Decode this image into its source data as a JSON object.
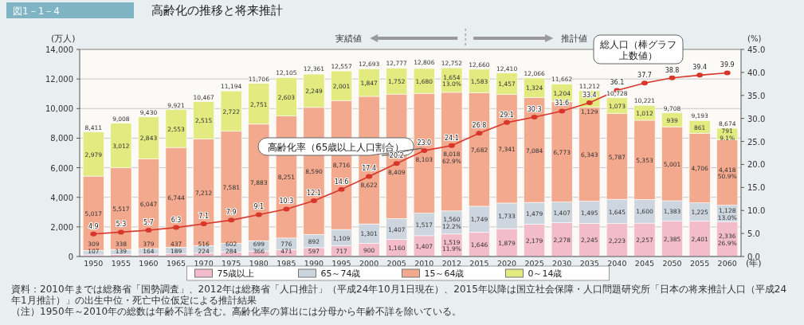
{
  "chart_data": {
    "type": "bar",
    "stacked": true,
    "title": "高齢化の推移と将来推計",
    "subtitle": "図1－1－4",
    "categories": [
      "1950",
      "1955",
      "1960",
      "1965",
      "1970",
      "1975",
      "1980",
      "1985",
      "1990",
      "1995",
      "2000",
      "2005",
      "2010",
      "2012",
      "2015",
      "2020",
      "2025",
      "2030",
      "2035",
      "2040",
      "2045",
      "2050",
      "2055",
      "2060"
    ],
    "xlabel": "(年)",
    "ylabel": "(万人)",
    "y2label": "(%)",
    "series": [
      {
        "name": "75歳以上",
        "color": "#f2bccb",
        "values": [
          107,
          139,
          164,
          189,
          224,
          284,
          366,
          471,
          597,
          717,
          900,
          1160,
          1407,
          1519,
          1646,
          1879,
          2179,
          2278,
          2245,
          2223,
          2257,
          2385,
          2401,
          2336
        ],
        "value_labels": [
          "107",
          "139",
          "164",
          "189",
          "224",
          "284",
          "366",
          "471",
          "597",
          "717",
          "900",
          "1,160",
          "1,407",
          "1,519\n11.9%",
          "1,646",
          "1,879",
          "2,179",
          "2,278",
          "2,245",
          "2,223",
          "2,257",
          "2,385",
          "2,401",
          "2,336\n26.9%"
        ]
      },
      {
        "name": "65～74歳",
        "color": "#cdd6de",
        "values": [
          309,
          338,
          379,
          437,
          516,
          602,
          699,
          776,
          892,
          1109,
          1301,
          1407,
          1517,
          1560,
          1749,
          1733,
          1479,
          1407,
          1495,
          1645,
          1600,
          1383,
          1225,
          1128
        ],
        "value_labels": [
          "309",
          "338",
          "379",
          "437",
          "516",
          "602",
          "699",
          "776",
          "892",
          "1,109",
          "1,301",
          "1,407",
          "1,517",
          "1,560\n12.2%",
          "1,749",
          "1,733",
          "1,479",
          "1,407",
          "1,495",
          "1,645",
          "1,600",
          "1,383",
          "1,225",
          "1,128\n13.0%"
        ]
      },
      {
        "name": "15～64歳",
        "color": "#f2a98e",
        "values": [
          5017,
          5517,
          6047,
          6744,
          7212,
          7581,
          7883,
          8251,
          8590,
          8716,
          8622,
          8409,
          8103,
          8018,
          7682,
          7341,
          7084,
          6773,
          6343,
          5787,
          5353,
          5001,
          4706,
          4418
        ],
        "value_labels": [
          "5,017",
          "5,517",
          "6,047",
          "6,744",
          "7,212",
          "7,581",
          "7,883",
          "8,251",
          "8,590",
          "8,716",
          "8,622",
          "8,409",
          "8,103",
          "8,018\n62.9%",
          "7,682",
          "7,341",
          "7,084",
          "6,773",
          "6,343",
          "5,787",
          "5,353",
          "5,001",
          "4,706",
          "4,418\n50.9%"
        ]
      },
      {
        "name": "0～14歳",
        "color": "#e2ea80",
        "values": [
          2979,
          3012,
          2843,
          2553,
          2515,
          2722,
          2751,
          2603,
          2249,
          2001,
          1847,
          1752,
          1680,
          1654,
          1583,
          1457,
          1324,
          1204,
          1129,
          1073,
          1012,
          939,
          861,
          791
        ],
        "value_labels": [
          "2,979",
          "3,012",
          "2,843",
          "2,553",
          "2,515",
          "2,722",
          "2,751",
          "2,603",
          "2,249",
          "2,001",
          "1,847",
          "1,752",
          "1,680",
          "1,654\n13.0%",
          "1,583",
          "1,457",
          "1,324",
          "1,204",
          "1,129",
          "1,073",
          "1,012",
          "939",
          "861",
          "791\n9.1%"
        ]
      },
      {
        "type": "line",
        "axis": "y2",
        "color": "#d8362a",
        "values": [
          4.9,
          5.3,
          5.7,
          6.3,
          7.1,
          7.9,
          9.1,
          10.3,
          12.1,
          14.6,
          17.4,
          20.2,
          23.0,
          24.1,
          26.8,
          29.1,
          30.3,
          31.6,
          33.4,
          36.1,
          37.7,
          38.8,
          39.4,
          39.9
        ],
        "value_labels": [
          "4.9",
          "5.3",
          "5.7",
          "6.3",
          "7.1",
          "7.9",
          "9.1",
          "10.3",
          "12.1",
          "14.6",
          "17.4",
          "20.2",
          "23.0",
          "24.1",
          "26.8",
          "29.1",
          "30.3",
          "31.6",
          "33.4",
          "36.1",
          "37.7",
          "38.8",
          "39.4",
          "39.9"
        ]
      }
    ],
    "ylim": [
      0,
      14000
    ],
    "yticks": [
      0,
      {
        "value": 2000,
        "label": "2,000"
      },
      {
        "value": 4000,
        "label": "4,000"
      },
      {
        "value": 6000,
        "label": "6,000"
      },
      {
        "value": 8000,
        "label": "8,000"
      },
      {
        "value": 10000,
        "label": "10,000"
      },
      {
        "value": 12000,
        "label": "12,000"
      },
      {
        "value": 14000,
        "label": "14,000"
      }
    ],
    "y2lim": [
      0,
      45
    ],
    "y2ticks": [
      {
        "value": 0,
        "label": "0.0"
      },
      {
        "value": 5,
        "label": "5.0"
      },
      {
        "value": 10,
        "label": "10.0"
      },
      {
        "value": 15,
        "label": "15.0"
      },
      {
        "value": 20,
        "label": "20.0"
      },
      {
        "value": 25,
        "label": "25.0"
      },
      {
        "value": 30,
        "label": "30.0"
      },
      {
        "value": 35,
        "label": "35.0"
      },
      {
        "value": 40,
        "label": "40.0"
      },
      {
        "value": 45,
        "label": "45.0"
      }
    ],
    "grid": "y",
    "legend": "bottom",
    "marker": "circle",
    "annotations": [
      "高齢化率（65歳以上人口割合）",
      {
        "text": "8,411",
        "x": "1950",
        "y": 8411
      },
      {
        "text": "9,008",
        "x": "1955",
        "y": 9008
      },
      {
        "text": "9,430",
        "x": "1960",
        "y": 9430
      },
      {
        "text": "9,921",
        "x": "1965",
        "y": 9921
      },
      {
        "text": "10,467",
        "x": "1970",
        "y": 10467
      },
      {
        "text": "11,194",
        "x": "1975",
        "y": 11194
      },
      {
        "text": "11,706",
        "x": "1980",
        "y": 11706
      },
      {
        "text": "12,105",
        "x": "1985",
        "y": 12105
      },
      {
        "text": "12,361",
        "x": "1990",
        "y": 12361
      },
      {
        "text": "12,557",
        "x": "1995",
        "y": 12557
      },
      {
        "text": "12,693",
        "x": "2000",
        "y": 12693
      },
      {
        "text": "12,777",
        "x": "2005",
        "y": 12777
      },
      {
        "text": "12,806",
        "x": "2010",
        "y": 12806
      },
      {
        "text": "12,752",
        "x": "2012",
        "y": 12752
      },
      {
        "text": "12,660",
        "x": "2015",
        "y": 12660
      },
      {
        "text": "12,410",
        "x": "2020",
        "y": 12410
      },
      {
        "text": "12,066",
        "x": "2025",
        "y": 12066
      },
      {
        "text": "11,662",
        "x": "2030",
        "y": 11662
      },
      {
        "text": "11,212",
        "x": "2035",
        "y": 11212
      },
      {
        "text": "10,728",
        "x": "2040",
        "y": 10728
      },
      {
        "text": "10,221",
        "x": "2045",
        "y": 10221
      },
      {
        "text": "9,708",
        "x": "2050",
        "y": 9708
      },
      {
        "text": "9,193",
        "x": "2055",
        "y": 9193
      },
      {
        "text": "8,674",
        "x": "2060",
        "y": 8674
      },
      "実績値",
      "推計値",
      "総人口（棒グラフ上数値）",
      "資料：2010年までは総務省「国勢調査」、2012年は総務省「人口推計」（平成24年10月1日現在）、2015年以降は国立社会保障・人口問題研究所「日本の将来推計人口（平成24年1月推計）」の出生中位・死亡中位仮定による推計結果",
      "（注）1950年～2010年の総数は年齢不詳を含む。高齢化率の算出には分母から年齢不詳を除いている。"
    ]
  }
}
